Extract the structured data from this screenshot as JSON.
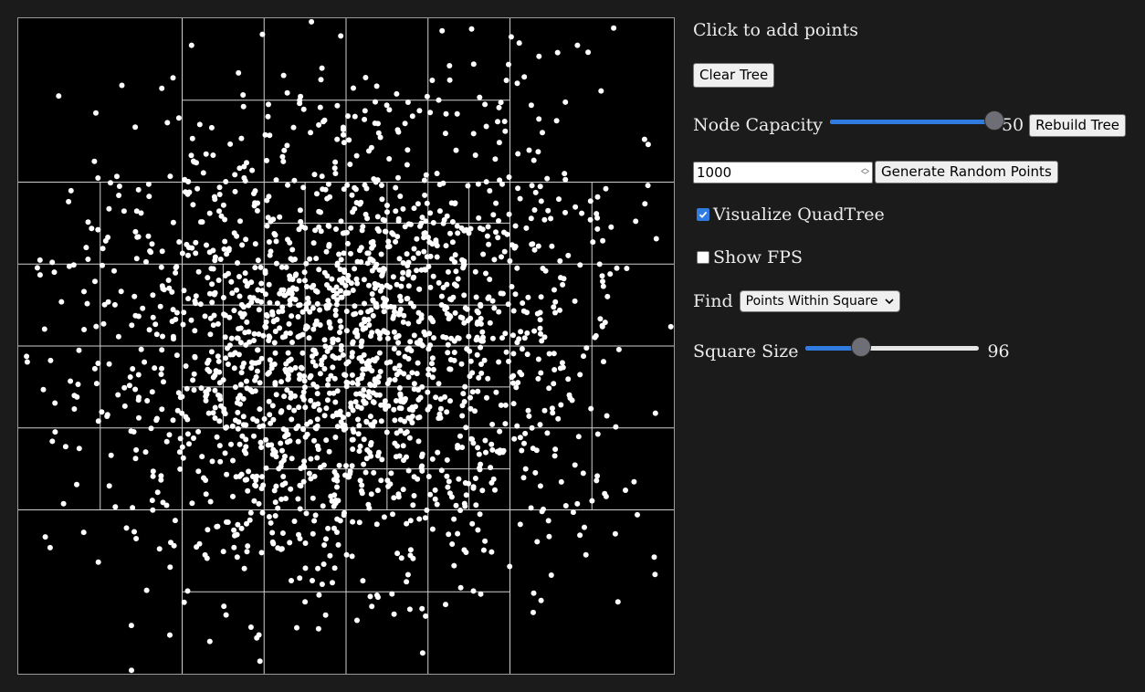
{
  "controls": {
    "instruction": "Click to add points",
    "clear_label": "Clear Tree",
    "node_capacity_label": "Node Capacity",
    "node_capacity_value": "50",
    "node_capacity_fraction": 1.0,
    "rebuild_label": "Rebuild Tree",
    "point_count": "1000",
    "generate_label": "Generate Random Points",
    "visualize_label": "Visualize QuadTree",
    "visualize_checked": true,
    "fps_label": "Show FPS",
    "fps_checked": false,
    "find_label": "Find",
    "find_selected": "Points Within Square",
    "square_size_label": "Square Size",
    "square_size_value": "96",
    "square_size_fraction": 0.32
  },
  "colors": {
    "accent": "#2f7be0",
    "canvas_bg": "#000000",
    "grid_line": "#cfcfcf",
    "point": "#ffffff"
  },
  "icons": {
    "dropdown": "chevron-down-icon",
    "checkmark": "checkmark-icon",
    "spinner": "spinner-icon"
  }
}
